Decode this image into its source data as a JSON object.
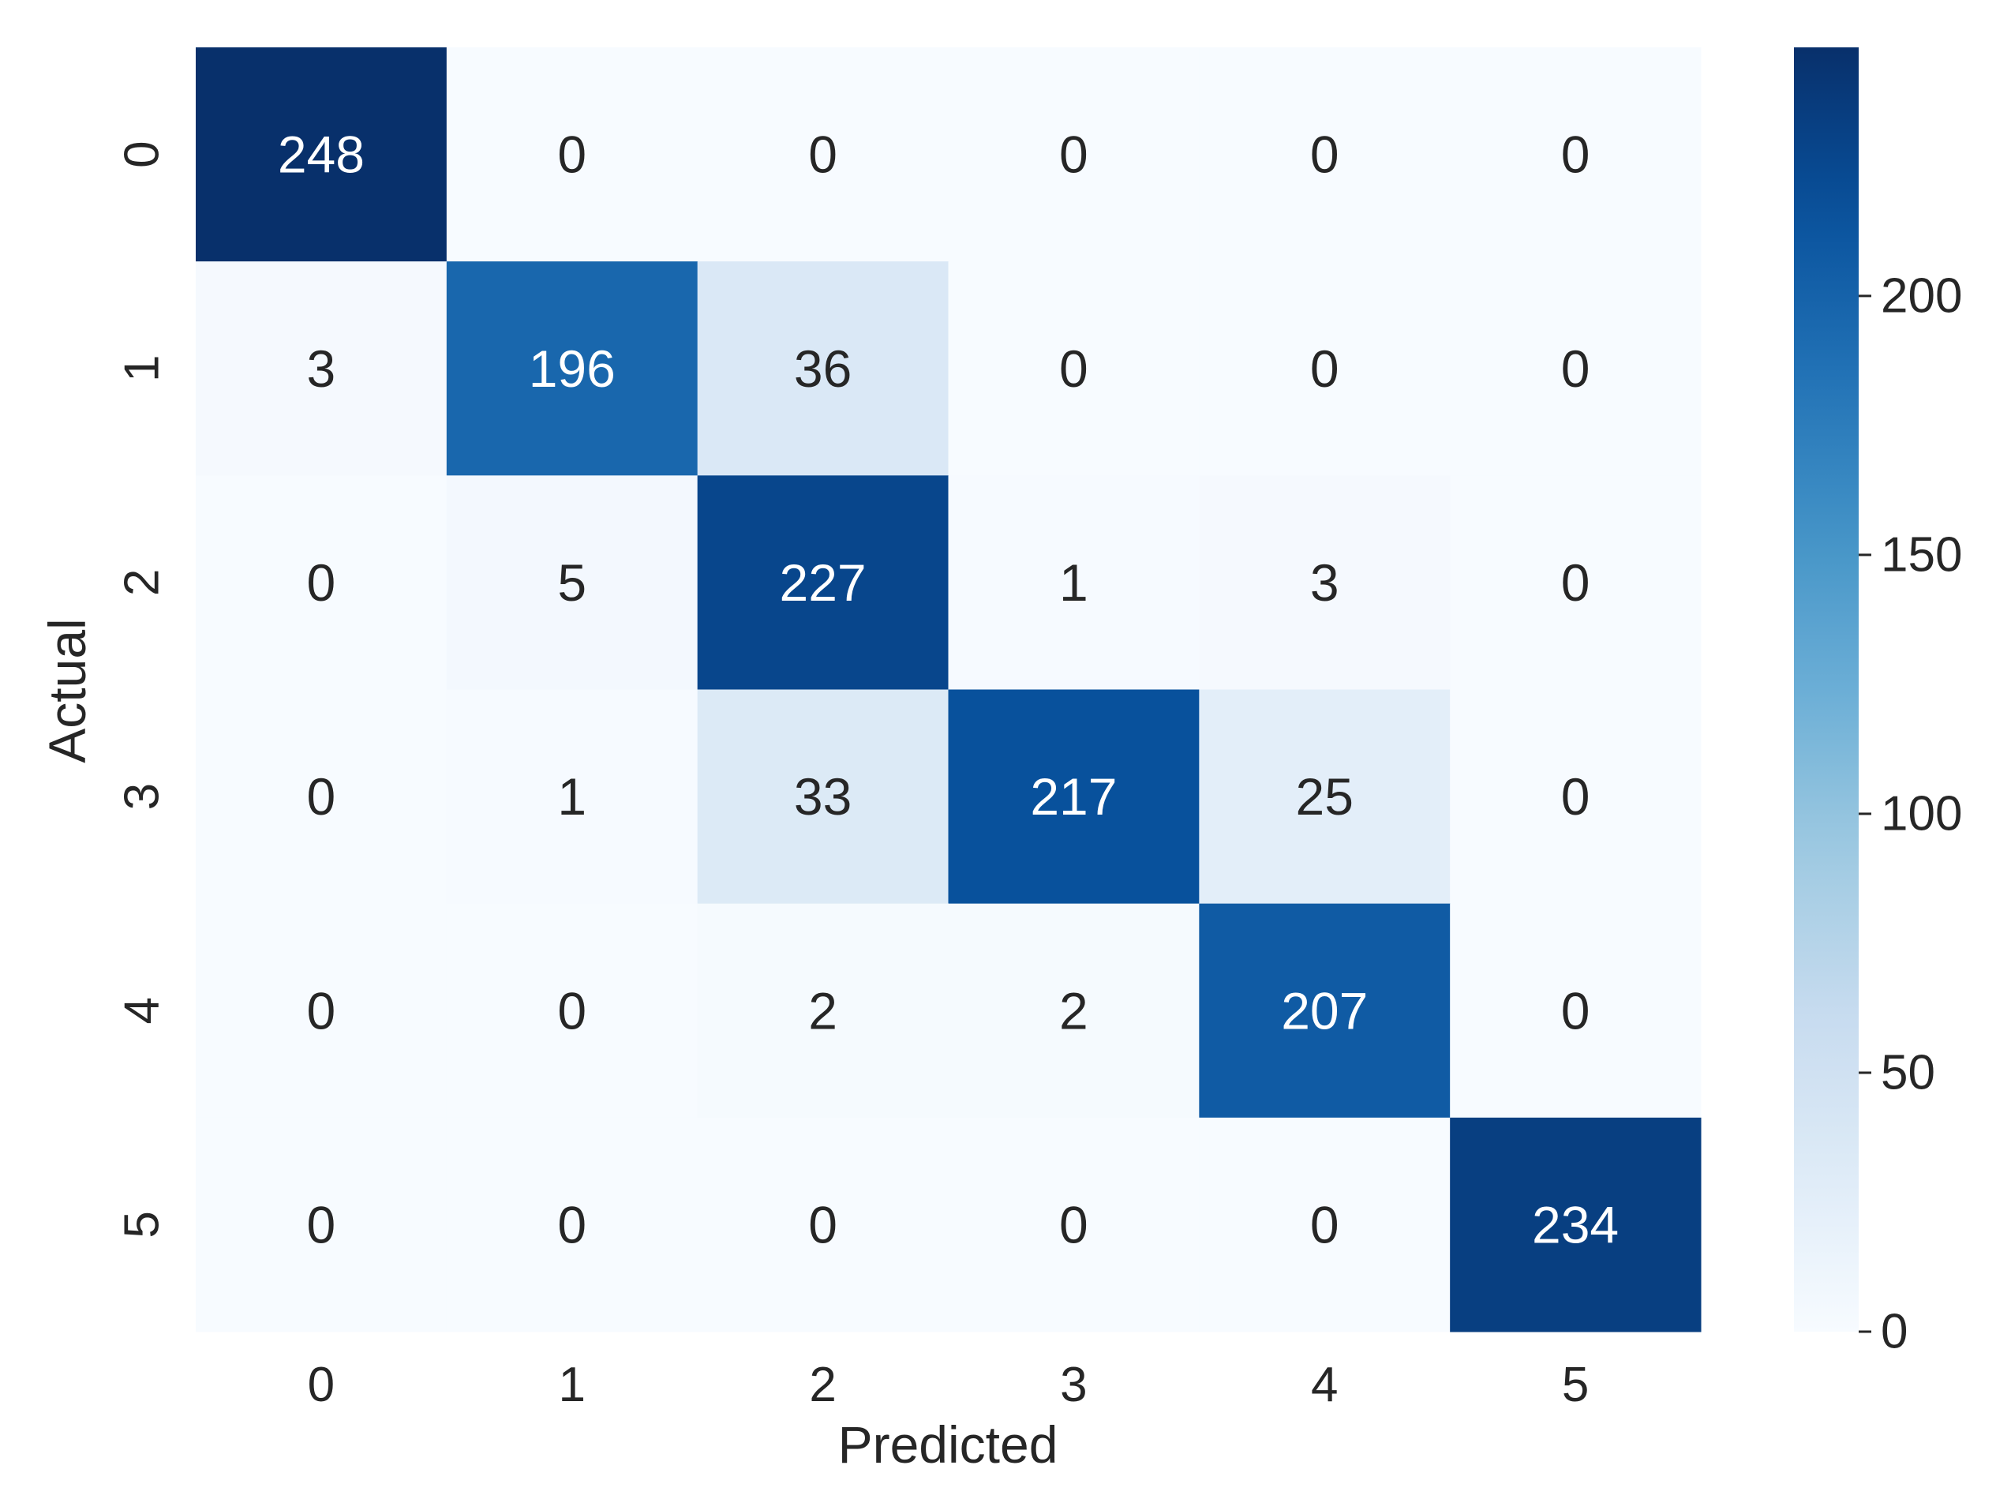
{
  "chart_data": {
    "type": "heatmap",
    "title": "",
    "xlabel": "Predicted",
    "ylabel": "Actual",
    "x_categories": [
      "0",
      "1",
      "2",
      "3",
      "4",
      "5"
    ],
    "y_categories": [
      "0",
      "1",
      "2",
      "3",
      "4",
      "5"
    ],
    "values": [
      [
        248,
        0,
        0,
        0,
        0,
        0
      ],
      [
        3,
        196,
        36,
        0,
        0,
        0
      ],
      [
        0,
        5,
        227,
        1,
        3,
        0
      ],
      [
        0,
        1,
        33,
        217,
        25,
        0
      ],
      [
        0,
        0,
        2,
        2,
        207,
        0
      ],
      [
        0,
        0,
        0,
        0,
        0,
        234
      ]
    ],
    "colormap": "Blues",
    "colorbar": {
      "range": [
        0,
        248
      ],
      "ticks": [
        0,
        50,
        100,
        150,
        200
      ],
      "tick_labels": [
        "0",
        "50",
        "100",
        "150",
        "200"
      ]
    },
    "grid": false
  }
}
